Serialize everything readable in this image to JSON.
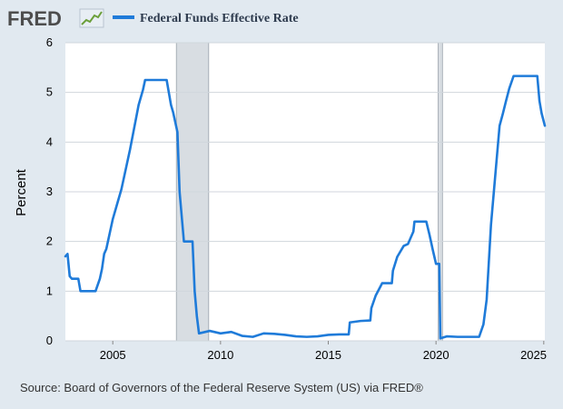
{
  "header": {
    "logo_text": "FRED",
    "logo_icon": "line-chart-icon"
  },
  "source_text": "Source: Board of Governors of the Federal Reserve System (US) via FRED®",
  "colors": {
    "background": "#e1e9f0",
    "plot_background": "#ffffff",
    "series": "#1f7bd9",
    "recession": "#d8dde2",
    "grid": "#d0d6dc",
    "logo": "#4d4d4d"
  },
  "chart_data": {
    "type": "line",
    "title": "",
    "xlabel": "",
    "ylabel": "Percent",
    "xlim": [
      2002.8,
      2025.05
    ],
    "ylim": [
      0,
      6
    ],
    "y_ticks": [
      0,
      1,
      2,
      3,
      4,
      5,
      6
    ],
    "x_ticks": [
      2005,
      2010,
      2015,
      2020,
      2025
    ],
    "x_tick_labels": [
      "2005",
      "2010",
      "2015",
      "2020",
      "2025"
    ],
    "y_tick_labels": [
      "0",
      "1",
      "2",
      "3",
      "4",
      "5",
      "6"
    ],
    "grid": true,
    "legend": "top-left",
    "recessions": [
      [
        2007.95,
        2009.45
      ],
      [
        2020.1,
        2020.3
      ]
    ],
    "series": [
      {
        "name": "Federal Funds Effective Rate",
        "x": [
          2002.8,
          2002.9,
          2003.0,
          2003.1,
          2003.2,
          2003.3,
          2003.4,
          2003.5,
          2003.6,
          2003.7,
          2003.8,
          2004.0,
          2004.2,
          2004.4,
          2004.5,
          2004.6,
          2004.7,
          2004.8,
          2004.9,
          2005.0,
          2005.2,
          2005.4,
          2005.6,
          2005.8,
          2006.0,
          2006.2,
          2006.4,
          2006.5,
          2006.8,
          2007.0,
          2007.2,
          2007.5,
          2007.7,
          2007.8,
          2008.0,
          2008.1,
          2008.2,
          2008.3,
          2008.4,
          2008.6,
          2008.7,
          2008.75,
          2008.8,
          2008.9,
          2009.0,
          2009.5,
          2010.0,
          2010.5,
          2011.0,
          2011.5,
          2012.0,
          2012.5,
          2013.0,
          2013.5,
          2014.0,
          2014.5,
          2015.0,
          2015.5,
          2015.95,
          2016.0,
          2016.5,
          2016.95,
          2017.0,
          2017.2,
          2017.5,
          2017.95,
          2018.0,
          2018.2,
          2018.5,
          2018.7,
          2018.95,
          2019.0,
          2019.3,
          2019.55,
          2019.7,
          2019.85,
          2020.0,
          2020.15,
          2020.2,
          2020.5,
          2021.0,
          2021.5,
          2022.0,
          2022.2,
          2022.35,
          2022.45,
          2022.55,
          2022.7,
          2022.85,
          2022.95,
          2023.1,
          2023.25,
          2023.4,
          2023.6,
          2024.0,
          2024.5,
          2024.7,
          2024.8,
          2024.9,
          2025.05
        ],
        "values": [
          1.7,
          1.75,
          1.3,
          1.25,
          1.25,
          1.25,
          1.25,
          1.0,
          1.0,
          1.0,
          1.0,
          1.0,
          1.0,
          1.25,
          1.45,
          1.75,
          1.85,
          2.05,
          2.25,
          2.45,
          2.75,
          3.05,
          3.45,
          3.85,
          4.3,
          4.75,
          5.05,
          5.25,
          5.25,
          5.25,
          5.25,
          5.25,
          4.75,
          4.6,
          4.2,
          3.0,
          2.5,
          2.0,
          2.0,
          2.0,
          2.0,
          1.5,
          1.0,
          0.5,
          0.15,
          0.2,
          0.15,
          0.18,
          0.1,
          0.08,
          0.15,
          0.14,
          0.12,
          0.09,
          0.08,
          0.09,
          0.12,
          0.13,
          0.13,
          0.37,
          0.4,
          0.41,
          0.66,
          0.91,
          1.16,
          1.16,
          1.41,
          1.69,
          1.91,
          1.95,
          2.2,
          2.4,
          2.4,
          2.4,
          2.13,
          1.83,
          1.55,
          1.55,
          0.05,
          0.09,
          0.08,
          0.08,
          0.08,
          0.33,
          0.83,
          1.58,
          2.33,
          3.08,
          3.83,
          4.33,
          4.57,
          4.83,
          5.08,
          5.33,
          5.33,
          5.33,
          5.33,
          4.83,
          4.58,
          4.33
        ]
      }
    ]
  }
}
